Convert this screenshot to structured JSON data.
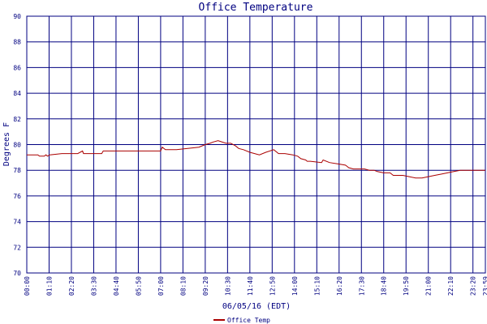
{
  "chart_data": {
    "type": "line",
    "title": "Office Temperature",
    "xlabel": "06/05/16 (EDT)",
    "ylabel": "Degrees F",
    "ylim": [
      70,
      90
    ],
    "yticks": [
      70,
      72,
      74,
      76,
      78,
      80,
      82,
      84,
      86,
      88,
      90
    ],
    "xlim_minutes": [
      0,
      1439
    ],
    "xtick_labels": [
      "00:00",
      "01:10",
      "02:20",
      "03:30",
      "04:40",
      "05:50",
      "07:00",
      "08:10",
      "09:20",
      "10:30",
      "11:40",
      "12:50",
      "14:00",
      "15:10",
      "16:20",
      "17:30",
      "18:40",
      "19:50",
      "21:00",
      "22:10",
      "23:20",
      "23:59"
    ],
    "grid": true,
    "legend_position": "bottom-center",
    "colors": {
      "frame": "#000080",
      "series": "#aa0000",
      "text": "#000080"
    },
    "series": [
      {
        "name": "Office Temp",
        "x_minutes": [
          0,
          35,
          40,
          55,
          60,
          65,
          72,
          110,
          160,
          175,
          178,
          182,
          235,
          240,
          420,
          425,
          435,
          470,
          540,
          560,
          575,
          585,
          600,
          625,
          640,
          655,
          665,
          680,
          700,
          715,
          730,
          750,
          775,
          790,
          810,
          835,
          850,
          860,
          875,
          880,
          890,
          925,
          930,
          950,
          975,
          1000,
          1005,
          1010,
          1025,
          1050,
          1060,
          1075,
          1090,
          1100,
          1120,
          1140,
          1150,
          1180,
          1200,
          1220,
          1230,
          1240,
          1280,
          1300,
          1320,
          1340,
          1360,
          1439
        ],
        "values": [
          79.2,
          79.2,
          79.1,
          79.1,
          79.2,
          79.1,
          79.2,
          79.3,
          79.3,
          79.5,
          79.3,
          79.3,
          79.3,
          79.5,
          79.5,
          79.8,
          79.6,
          79.6,
          79.8,
          80.0,
          80.1,
          80.2,
          80.3,
          80.1,
          80.1,
          79.9,
          79.7,
          79.6,
          79.4,
          79.3,
          79.2,
          79.4,
          79.6,
          79.3,
          79.3,
          79.2,
          79.1,
          78.9,
          78.8,
          78.7,
          78.7,
          78.6,
          78.8,
          78.6,
          78.5,
          78.4,
          78.3,
          78.2,
          78.1,
          78.1,
          78.1,
          78.0,
          78.0,
          77.9,
          77.8,
          77.8,
          77.6,
          77.6,
          77.5,
          77.4,
          77.4,
          77.4,
          77.6,
          77.7,
          77.8,
          77.9,
          78.0,
          78.0
        ]
      }
    ]
  }
}
